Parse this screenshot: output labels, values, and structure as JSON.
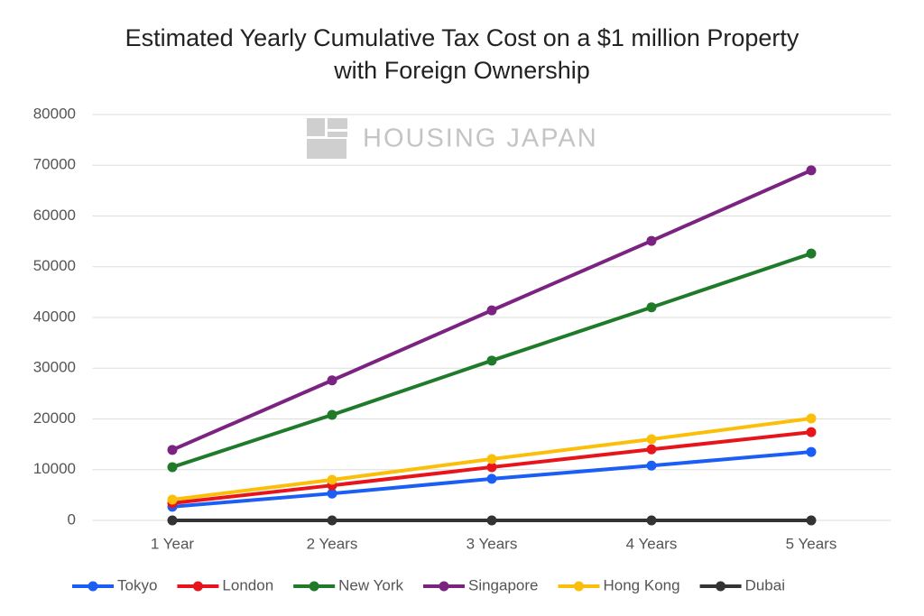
{
  "chart_data": {
    "type": "line",
    "title": "Estimated Yearly Cumulative Tax Cost on a $1 million Property with Foreign Ownership",
    "watermark": "HOUSING JAPAN",
    "categories": [
      "1 Year",
      "2 Years",
      "3 Years",
      "4 Years",
      "5 Years"
    ],
    "series": [
      {
        "name": "Tokyo",
        "color": "#1a5ef5",
        "values": [
          2700,
          5300,
          8200,
          10800,
          13500
        ]
      },
      {
        "name": "London",
        "color": "#e8141b",
        "values": [
          3400,
          6900,
          10500,
          14000,
          17400
        ]
      },
      {
        "name": "New York",
        "color": "#1f7a2a",
        "values": [
          10500,
          20800,
          31500,
          42000,
          52600
        ]
      },
      {
        "name": "Singapore",
        "color": "#7b2381",
        "values": [
          13900,
          27600,
          41400,
          55100,
          69000
        ]
      },
      {
        "name": "Hong Kong",
        "color": "#fbbf0a",
        "values": [
          4100,
          8000,
          12100,
          16000,
          20100
        ]
      },
      {
        "name": "Dubai",
        "color": "#333333",
        "values": [
          0,
          0,
          0,
          0,
          0
        ]
      }
    ],
    "ylim": [
      0,
      80000
    ],
    "yticks": [
      0,
      10000,
      20000,
      30000,
      40000,
      50000,
      60000,
      70000,
      80000
    ],
    "grid": true,
    "legend": "bottom"
  }
}
